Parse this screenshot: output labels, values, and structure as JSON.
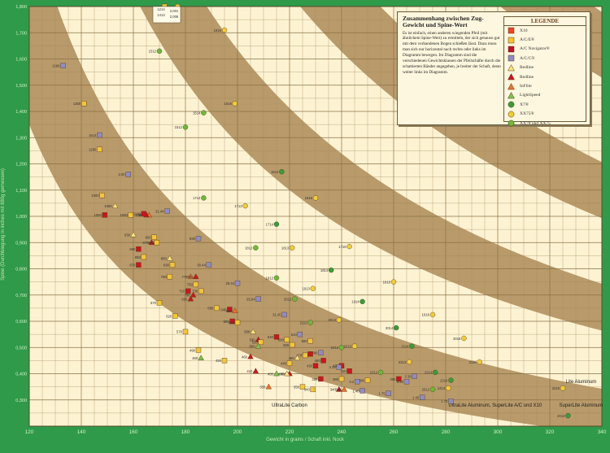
{
  "chart_data": {
    "type": "scatter",
    "title": "Zusammenhang zwischen Zug-Gewicht und Spine-Wert",
    "xlabel": "Gewicht in grains / Schaft inkl. Nock",
    "ylabel": "Spine (Durchbiegung in inches mit 880g gemessen)",
    "xlim": [
      120,
      340
    ],
    "ylim": [
      0.2,
      1.8
    ],
    "x_ticks": [
      "120",
      "140",
      "160",
      "180",
      "200",
      "220",
      "240",
      "260",
      "280",
      "300",
      "320",
      "340"
    ],
    "y_ticks": [
      "0,300",
      "0,400",
      "0,500",
      "0,600",
      "0,700",
      "0,800",
      "0,900",
      "1,000",
      "1,100",
      "1,200",
      "1,300",
      "1,400",
      "1,500",
      "1,600",
      "1,700",
      "1,800"
    ],
    "description_text": "Es ist einfach, einen anderen wiegenden Pfeil (mit ähnlichem Spine-Wert) zu ermitteln, der sich genauso gut mit dem vorhandenen Bogen schießen lässt. Dazu muss man sich nur horizontal nach rechts oder links im Diagramm bewegen. Im Diagramm sind die verschiedenen Gewichtsklassen der Pfeilschäfte durch die schattierten Bänder angegeben, je breiter der Schaft, desto weiter links im Diagramm.",
    "legend_title": "LEGENDE",
    "legend": [
      {
        "name": "X10",
        "marker": "square",
        "color": "#e8462b"
      },
      {
        "name": "A/C/E®",
        "marker": "square",
        "color": "#f2c53a"
      },
      {
        "name": "A/C Navigator®",
        "marker": "square",
        "color": "#b5142a"
      },
      {
        "name": "A/C/C®",
        "marker": "square",
        "color": "#8e8cc2"
      },
      {
        "name": "Redline",
        "marker": "triangle",
        "color": "#f7e37a"
      },
      {
        "name": "Redline",
        "marker": "triangle",
        "color": "#c8171e"
      },
      {
        "name": "InFlite",
        "marker": "triangle",
        "color": "#e8742a"
      },
      {
        "name": "LightSpeed",
        "marker": "triangle",
        "color": "#7cc24a"
      },
      {
        "name": "X7®",
        "marker": "circle",
        "color": "#3d9b3a"
      },
      {
        "name": "XX75®",
        "marker": "circle",
        "color": "#f3cb3c"
      },
      {
        "name": "XX78 und XX75",
        "marker": "circle",
        "color": "#6fb83a"
      }
    ],
    "inset_labels": [
      "1214",
      "2,001",
      "1413",
      "2,008"
    ],
    "band_labels": [
      "UltraLite Carbon",
      "UltraLite Aluminum, SuperLite A/C und X10",
      "Lite Aluminum",
      "SuperLite Aluminum"
    ],
    "points": [
      {
        "label": "2186",
        "x": 133,
        "y": 1.575,
        "m": "square",
        "c": "#8e8cc2"
      },
      {
        "label": "1300",
        "x": 141,
        "y": 1.43,
        "m": "square",
        "c": "#f2c53a"
      },
      {
        "label": "1614",
        "x": 147,
        "y": 1.31,
        "m": "square",
        "c": "#8e8cc2"
      },
      {
        "label": "1250",
        "x": 147,
        "y": 1.255,
        "m": "square",
        "c": "#f2c53a"
      },
      {
        "label": "2.00",
        "x": 158,
        "y": 1.16,
        "m": "square",
        "c": "#8e8cc2"
      },
      {
        "label": "1000",
        "x": 148,
        "y": 1.08,
        "m": "square",
        "c": "#f2c53a"
      },
      {
        "label": "1000",
        "x": 149,
        "y": 1.005,
        "m": "square",
        "c": "#c8171e"
      },
      {
        "label": "1050",
        "x": 153,
        "y": 1.04,
        "m": "triangle",
        "c": "#f7e37a"
      },
      {
        "label": "1000",
        "x": 159,
        "y": 1.005,
        "m": "square",
        "c": "#f2c53a"
      },
      {
        "label": "1000",
        "x": 166,
        "y": 1.005,
        "m": "triangle",
        "c": "#e8742a"
      },
      {
        "label": "1000",
        "x": 165,
        "y": 1.005,
        "m": "triangle",
        "c": "#c8171e"
      },
      {
        "label": "1100",
        "x": 164,
        "y": 1.01,
        "m": "square",
        "c": "#c8171e"
      },
      {
        "label": "31.44",
        "x": 173,
        "y": 1.02,
        "m": "square",
        "c": "#8e8cc2"
      },
      {
        "label": "930",
        "x": 160,
        "y": 0.93,
        "m": "triangle",
        "c": "#f7e37a"
      },
      {
        "label": "920",
        "x": 168,
        "y": 0.92,
        "m": "square",
        "c": "#f2c53a"
      },
      {
        "label": "930",
        "x": 185,
        "y": 0.915,
        "m": "square",
        "c": "#8e8cc2"
      },
      {
        "label": "870",
        "x": 167,
        "y": 0.9,
        "m": "triangle",
        "c": "#c8171e"
      },
      {
        "label": "900",
        "x": 169,
        "y": 0.9,
        "m": "square",
        "c": "#f2c53a"
      },
      {
        "label": "880",
        "x": 162,
        "y": 0.875,
        "m": "square",
        "c": "#c8171e"
      },
      {
        "label": "850",
        "x": 164,
        "y": 0.845,
        "m": "square",
        "c": "#f2c53a"
      },
      {
        "label": "870",
        "x": 162,
        "y": 0.815,
        "m": "square",
        "c": "#c8171e"
      },
      {
        "label": "850",
        "x": 174,
        "y": 0.84,
        "m": "triangle",
        "c": "#f7e37a"
      },
      {
        "label": "830",
        "x": 175,
        "y": 0.815,
        "m": "square",
        "c": "#f2c53a"
      },
      {
        "label": "780",
        "x": 174,
        "y": 0.77,
        "m": "square",
        "c": "#f2c53a"
      },
      {
        "label": "30.44",
        "x": 189,
        "y": 0.815,
        "m": "square",
        "c": "#8e8cc2"
      },
      {
        "label": "775",
        "x": 182,
        "y": 0.77,
        "m": "triangle",
        "c": "#e8742a"
      },
      {
        "label": "780",
        "x": 184,
        "y": 0.77,
        "m": "triangle",
        "c": "#c8171e"
      },
      {
        "label": "750",
        "x": 184,
        "y": 0.74,
        "m": "square",
        "c": "#f2c53a"
      },
      {
        "label": "710",
        "x": 181,
        "y": 0.715,
        "m": "square",
        "c": "#c8171e"
      },
      {
        "label": "730",
        "x": 186,
        "y": 0.715,
        "m": "square",
        "c": "#f2c53a"
      },
      {
        "label": "700",
        "x": 183,
        "y": 0.7,
        "m": "triangle",
        "c": "#c8171e"
      },
      {
        "label": "28.44",
        "x": 200,
        "y": 0.745,
        "m": "square",
        "c": "#8e8cc2"
      },
      {
        "label": "690",
        "x": 182,
        "y": 0.685,
        "m": "triangle",
        "c": "#c8171e"
      },
      {
        "label": "670",
        "x": 170,
        "y": 0.67,
        "m": "square",
        "c": "#f2c53a"
      },
      {
        "label": "650",
        "x": 192,
        "y": 0.65,
        "m": "square",
        "c": "#f2c53a"
      },
      {
        "label": "640",
        "x": 197,
        "y": 0.645,
        "m": "square",
        "c": "#c8171e"
      },
      {
        "label": "620",
        "x": 199,
        "y": 0.64,
        "m": "triangle",
        "c": "#e8742a"
      },
      {
        "label": "620",
        "x": 176,
        "y": 0.62,
        "m": "square",
        "c": "#f2c53a"
      },
      {
        "label": "600",
        "x": 198,
        "y": 0.6,
        "m": "square",
        "c": "#c8171e"
      },
      {
        "label": "600",
        "x": 200,
        "y": 0.595,
        "m": "square",
        "c": "#f2c53a"
      },
      {
        "label": "25.64",
        "x": 208,
        "y": 0.685,
        "m": "square",
        "c": "#8e8cc2"
      },
      {
        "label": "31.45",
        "x": 218,
        "y": 0.625,
        "m": "square",
        "c": "#8e8cc2"
      },
      {
        "label": "580",
        "x": 206,
        "y": 0.56,
        "m": "triangle",
        "c": "#f7e37a"
      },
      {
        "label": "570",
        "x": 180,
        "y": 0.56,
        "m": "square",
        "c": "#f2c53a"
      },
      {
        "label": "540",
        "x": 215,
        "y": 0.54,
        "m": "square",
        "c": "#c8171e"
      },
      {
        "label": "530",
        "x": 208,
        "y": 0.53,
        "m": "triangle",
        "c": "#c8171e"
      },
      {
        "label": "520",
        "x": 209,
        "y": 0.52,
        "m": "square",
        "c": "#f2c53a"
      },
      {
        "label": "510",
        "x": 224,
        "y": 0.55,
        "m": "square",
        "c": "#8e8cc2"
      },
      {
        "label": "500",
        "x": 219,
        "y": 0.53,
        "m": "square",
        "c": "#f2c53a"
      },
      {
        "label": "500",
        "x": 228,
        "y": 0.525,
        "m": "square",
        "c": "#f2c53a"
      },
      {
        "label": "500",
        "x": 221,
        "y": 0.51,
        "m": "square",
        "c": "#f2c53a"
      },
      {
        "label": "500",
        "x": 208,
        "y": 0.505,
        "m": "triangle",
        "c": "#7cc24a"
      },
      {
        "label": "480",
        "x": 232,
        "y": 0.48,
        "m": "square",
        "c": "#8e8cc2"
      },
      {
        "label": "470",
        "x": 228,
        "y": 0.475,
        "m": "square",
        "c": "#c8171e"
      },
      {
        "label": "470",
        "x": 226,
        "y": 0.47,
        "m": "square",
        "c": "#f2c53a"
      },
      {
        "label": "490",
        "x": 185,
        "y": 0.49,
        "m": "square",
        "c": "#f2c53a"
      },
      {
        "label": "460",
        "x": 186,
        "y": 0.46,
        "m": "triangle",
        "c": "#7cc24a"
      },
      {
        "label": "460",
        "x": 223,
        "y": 0.46,
        "m": "triangle",
        "c": "#f7e37a"
      },
      {
        "label": "460",
        "x": 205,
        "y": 0.465,
        "m": "triangle",
        "c": "#c8171e"
      },
      {
        "label": "450",
        "x": 195,
        "y": 0.45,
        "m": "square",
        "c": "#f2c53a"
      },
      {
        "label": "440",
        "x": 220,
        "y": 0.44,
        "m": "square",
        "c": "#f2c53a"
      },
      {
        "label": "430",
        "x": 230,
        "y": 0.43,
        "m": "square",
        "c": "#c8171e"
      },
      {
        "label": "430",
        "x": 240,
        "y": 0.43,
        "m": "square",
        "c": "#c8171e"
      },
      {
        "label": "410",
        "x": 243,
        "y": 0.41,
        "m": "square",
        "c": "#c8171e"
      },
      {
        "label": "410",
        "x": 207,
        "y": 0.41,
        "m": "triangle",
        "c": "#c8171e"
      },
      {
        "label": "4.22",
        "x": 239,
        "y": 0.425,
        "m": "square",
        "c": "#8e8cc2"
      },
      {
        "label": "450",
        "x": 233,
        "y": 0.45,
        "m": "square",
        "c": "#c8171e"
      },
      {
        "label": "380",
        "x": 232,
        "y": 0.38,
        "m": "square",
        "c": "#c8171e"
      },
      {
        "label": "380",
        "x": 240,
        "y": 0.38,
        "m": "square",
        "c": "#f2c53a"
      },
      {
        "label": "380",
        "x": 250,
        "y": 0.375,
        "m": "square",
        "c": "#f2c53a"
      },
      {
        "label": "3.2",
        "x": 246,
        "y": 0.37,
        "m": "square",
        "c": "#8e8cc2"
      },
      {
        "label": "350",
        "x": 225,
        "y": 0.35,
        "m": "square",
        "c": "#f2c53a"
      },
      {
        "label": "400",
        "x": 220,
        "y": 0.4,
        "m": "triangle",
        "c": "#c8171e"
      },
      {
        "label": "400",
        "x": 215,
        "y": 0.4,
        "m": "triangle",
        "c": "#7cc24a"
      },
      {
        "label": "400",
        "x": 219,
        "y": 0.4,
        "m": "triangle",
        "c": "#f7e37a"
      },
      {
        "label": "350",
        "x": 212,
        "y": 0.35,
        "m": "triangle",
        "c": "#e8742a"
      },
      {
        "label": "340",
        "x": 229,
        "y": 0.34,
        "m": "square",
        "c": "#f2c53a"
      },
      {
        "label": "340",
        "x": 239,
        "y": 0.34,
        "m": "triangle",
        "c": "#c8171e"
      },
      {
        "label": "340",
        "x": 241,
        "y": 0.34,
        "m": "triangle",
        "c": "#e8742a"
      },
      {
        "label": "1 40",
        "x": 248,
        "y": 0.335,
        "m": "square",
        "c": "#8e8cc2"
      },
      {
        "label": "1 75",
        "x": 258,
        "y": 0.325,
        "m": "square",
        "c": "#8e8cc2"
      },
      {
        "label": "1 40",
        "x": 271,
        "y": 0.31,
        "m": "square",
        "c": "#8e8cc2"
      },
      {
        "label": "1 73",
        "x": 282,
        "y": 0.295,
        "m": "square",
        "c": "#8e8cc2"
      },
      {
        "label": "380",
        "x": 262,
        "y": 0.38,
        "m": "square",
        "c": "#c8171e"
      },
      {
        "label": "3 39",
        "x": 268,
        "y": 0.39,
        "m": "square",
        "c": "#8e8cc2"
      },
      {
        "label": "3.20",
        "x": 265,
        "y": 0.37,
        "m": "square",
        "c": "#8e8cc2"
      },
      {
        "label": "1816",
        "x": 172,
        "y": 1.8,
        "m": "square",
        "c": "#f2c53a"
      },
      {
        "label": "1413",
        "x": 177,
        "y": 1.8,
        "m": "circle",
        "c": "#f3cb3c"
      },
      {
        "label": "1912",
        "x": 176,
        "y": 1.77,
        "m": "circle",
        "c": "#f3cb3c"
      },
      {
        "label": "1916",
        "x": 195,
        "y": 1.71,
        "m": "circle",
        "c": "#f3cb3c"
      },
      {
        "label": "1512",
        "x": 170,
        "y": 1.63,
        "m": "circle",
        "c": "#6fb83a"
      },
      {
        "label": "1516",
        "x": 199,
        "y": 1.43,
        "m": "circle",
        "c": "#f3cb3c"
      },
      {
        "label": "1514",
        "x": 187,
        "y": 1.395,
        "m": "circle",
        "c": "#6fb83a"
      },
      {
        "label": "1512",
        "x": 180,
        "y": 1.34,
        "m": "circle",
        "c": "#6fb83a"
      },
      {
        "label": "1614",
        "x": 217,
        "y": 1.17,
        "m": "circle",
        "c": "#3d9b3a"
      },
      {
        "label": "1713",
        "x": 203,
        "y": 1.04,
        "m": "circle",
        "c": "#f3cb3c"
      },
      {
        "label": "1712",
        "x": 187,
        "y": 1.07,
        "m": "circle",
        "c": "#6fb83a"
      },
      {
        "label": "1616",
        "x": 230,
        "y": 1.07,
        "m": "circle",
        "c": "#f3cb3c"
      },
      {
        "label": "1714",
        "x": 215,
        "y": 0.97,
        "m": "circle",
        "c": "#3d9b3a"
      },
      {
        "label": "1813",
        "x": 221,
        "y": 0.88,
        "m": "circle",
        "c": "#f3cb3c"
      },
      {
        "label": "1812",
        "x": 207,
        "y": 0.88,
        "m": "circle",
        "c": "#6fb83a"
      },
      {
        "label": "1716",
        "x": 243,
        "y": 0.885,
        "m": "circle",
        "c": "#f3cb3c"
      },
      {
        "label": "1814",
        "x": 236,
        "y": 0.795,
        "m": "circle",
        "c": "#3d9b3a"
      },
      {
        "label": "1912",
        "x": 215,
        "y": 0.765,
        "m": "circle",
        "c": "#6fb83a"
      },
      {
        "label": "1913",
        "x": 229,
        "y": 0.725,
        "m": "circle",
        "c": "#f3cb3c"
      },
      {
        "label": "1816",
        "x": 260,
        "y": 0.75,
        "m": "circle",
        "c": "#f3cb3c"
      },
      {
        "label": "2012",
        "x": 222,
        "y": 0.685,
        "m": "circle",
        "c": "#6fb83a"
      },
      {
        "label": "1914",
        "x": 248,
        "y": 0.675,
        "m": "circle",
        "c": "#3d9b3a"
      },
      {
        "label": "2013",
        "x": 239,
        "y": 0.605,
        "m": "circle",
        "c": "#f3cb3c"
      },
      {
        "label": "2112",
        "x": 228,
        "y": 0.595,
        "m": "circle",
        "c": "#6fb83a"
      },
      {
        "label": "1916",
        "x": 275,
        "y": 0.625,
        "m": "circle",
        "c": "#f3cb3c"
      },
      {
        "label": "2014",
        "x": 261,
        "y": 0.575,
        "m": "circle",
        "c": "#3d9b3a"
      },
      {
        "label": "2212",
        "x": 240,
        "y": 0.5,
        "m": "circle",
        "c": "#6fb83a"
      },
      {
        "label": "2213",
        "x": 245,
        "y": 0.505,
        "m": "circle",
        "c": "#f3cb3c"
      },
      {
        "label": "2016",
        "x": 287,
        "y": 0.535,
        "m": "circle",
        "c": "#f3cb3c"
      },
      {
        "label": "2114",
        "x": 267,
        "y": 0.505,
        "m": "circle",
        "c": "#3d9b3a"
      },
      {
        "label": "2213",
        "x": 266,
        "y": 0.445,
        "m": "circle",
        "c": "#f3cb3c"
      },
      {
        "label": "2312",
        "x": 255,
        "y": 0.405,
        "m": "circle",
        "c": "#6fb83a"
      },
      {
        "label": "2116",
        "x": 293,
        "y": 0.445,
        "m": "circle",
        "c": "#f3cb3c"
      },
      {
        "label": "2214",
        "x": 276,
        "y": 0.405,
        "m": "circle",
        "c": "#3d9b3a"
      },
      {
        "label": "2314",
        "x": 282,
        "y": 0.375,
        "m": "circle",
        "c": "#3d9b3a"
      },
      {
        "label": "2413",
        "x": 281,
        "y": 0.345,
        "m": "circle",
        "c": "#f3cb3c"
      },
      {
        "label": "2512",
        "x": 275,
        "y": 0.34,
        "m": "circle",
        "c": "#6fb83a"
      },
      {
        "label": "2215",
        "x": 325,
        "y": 0.345,
        "m": "circle",
        "c": "#f3cb3c"
      },
      {
        "label": "2413",
        "x": 327,
        "y": 0.24,
        "m": "circle",
        "c": "#3d9b3a"
      }
    ]
  }
}
